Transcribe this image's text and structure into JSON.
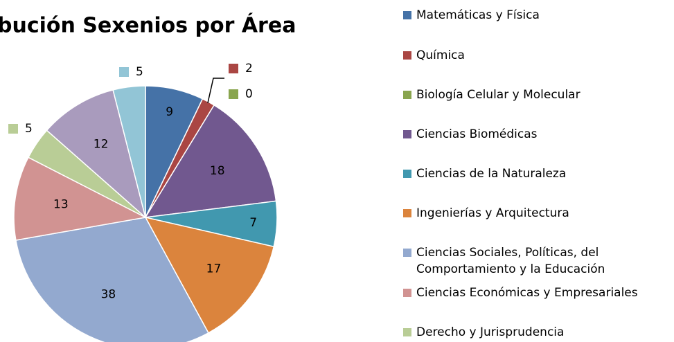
{
  "chart_data": {
    "type": "pie",
    "title": "bución Sexenios por Área",
    "categories": [
      "Matemáticas y Física",
      "Química",
      "Biología Celular y Molecular",
      "Ciencias Biomédicas",
      "Ciencias de la Naturaleza",
      "Ingenierías y Arquitectura",
      "Ciencias Sociales, Políticas, del\nComportamiento y la Educación",
      "Ciencias Económicas y Empresariales",
      "Derecho y Jurisprudencia",
      null,
      null
    ],
    "values": [
      9,
      2,
      0,
      18,
      7,
      17,
      38,
      13,
      5,
      12,
      5
    ],
    "colors": [
      "#4572A7",
      "#AA4643",
      "#89A54E",
      "#71588F",
      "#4198AF",
      "#DB843D",
      "#93A9CF",
      "#D19392",
      "#B9CD96",
      "#A99BBD",
      "#92C5D6"
    ]
  }
}
